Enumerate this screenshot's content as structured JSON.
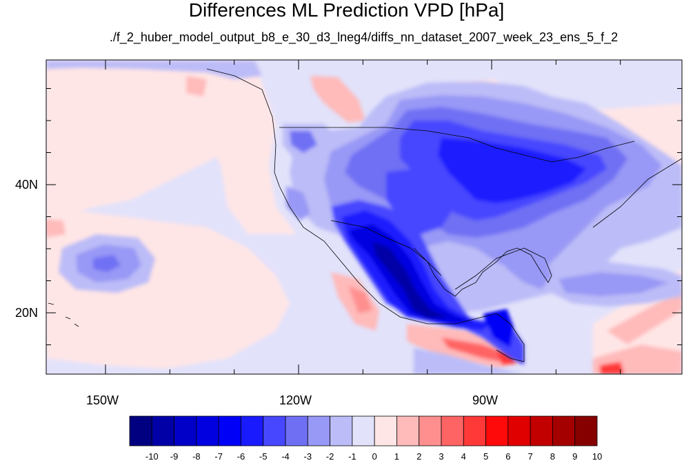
{
  "title": "Differences ML Prediction VPD [hPa]",
  "subtitle": "./f_2_huber_model_output_b8_e_30_d3_lneg4/diffs_nn_dataset_2007_week_23_ens_5_f_2",
  "lat_ticks": [
    {
      "value": 40,
      "label": "40N"
    },
    {
      "value": 20,
      "label": "20N"
    }
  ],
  "lon_ticks": [
    {
      "value": -150,
      "label": "150W"
    },
    {
      "value": -120,
      "label": "120W"
    },
    {
      "value": -90,
      "label": "90W"
    }
  ],
  "colorbar": {
    "labels": [
      "-10",
      "-9",
      "-8",
      "-7",
      "-6",
      "-5",
      "-4",
      "-3",
      "-2",
      "-1",
      "0",
      "1",
      "2",
      "3",
      "4",
      "5",
      "6",
      "7",
      "8",
      "9",
      "10"
    ],
    "colors": [
      "#000080",
      "#0000a6",
      "#0000c8",
      "#0000e0",
      "#0000f6",
      "#1a1aff",
      "#4747ff",
      "#6f6ff4",
      "#9898f6",
      "#bcbcf8",
      "#e2e2fb",
      "#ffe6e6",
      "#ffbaba",
      "#ff8f8f",
      "#ff6464",
      "#ff3838",
      "#ff0a0a",
      "#e00000",
      "#c20000",
      "#a40000",
      "#860000"
    ]
  },
  "legend_values": {
    "background": "#e2e2fb",
    "land_outline": "#000000"
  }
}
